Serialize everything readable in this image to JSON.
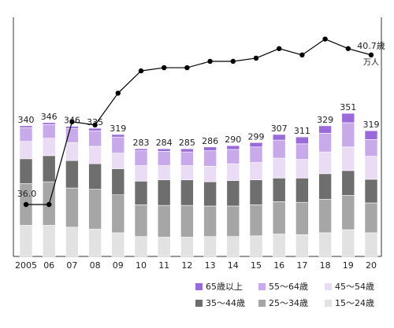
{
  "chart_data": {
    "type": "bar",
    "subtype": "stacked-bar-with-line",
    "categories": [
      "2005",
      "06",
      "07",
      "08",
      "09",
      "10",
      "11",
      "12",
      "13",
      "14",
      "15",
      "16",
      "17",
      "18",
      "19",
      "20"
    ],
    "totals": [
      340,
      346,
      346,
      335,
      319,
      283,
      284,
      285,
      286,
      290,
      299,
      307,
      311,
      329,
      351,
      319
    ],
    "total_unit": "万人",
    "series": [
      {
        "name": "15～24歳",
        "color": "#e2e2e2",
        "values": [
          50,
          50,
          47,
          44,
          38,
          32,
          31,
          31,
          32,
          32,
          33,
          36,
          35,
          38,
          43,
          38
        ]
      },
      {
        "name": "25～34歳",
        "color": "#a6a6a6",
        "values": [
          67,
          70,
          63,
          64,
          61,
          51,
          51,
          51,
          49,
          49,
          50,
          52,
          52,
          54,
          55,
          48
        ]
      },
      {
        "name": "35～44歳",
        "color": "#6e6e6e",
        "values": [
          40,
          42,
          44,
          41,
          42,
          38,
          41,
          41,
          39,
          41,
          40,
          38,
          39,
          41,
          40,
          38
        ]
      },
      {
        "name": "45～54歳",
        "color": "#ebdcf6",
        "values": [
          28,
          28,
          29,
          28,
          25,
          25,
          23,
          23,
          25,
          27,
          28,
          32,
          30,
          35,
          38,
          37
        ]
      },
      {
        "name": "55～64歳",
        "color": "#c8aaeb",
        "values": [
          22,
          22,
          23,
          25,
          26,
          24,
          23,
          22,
          25,
          23,
          25,
          29,
          25,
          30,
          39,
          27
        ]
      },
      {
        "name": "65歳以上",
        "color": "#9b6ad9",
        "values": [
          3,
          3,
          3,
          4,
          4,
          3,
          4,
          5,
          6,
          6,
          7,
          9,
          11,
          12,
          15,
          14
        ]
      }
    ],
    "line": {
      "values": [
        36.0,
        36.0,
        38.6,
        38.5,
        39.5,
        40.2,
        40.3,
        40.3,
        40.5,
        40.5,
        40.6,
        40.9,
        40.7,
        41.2,
        40.9,
        40.7
      ],
      "color": "#000000",
      "labels": {
        "0": "36.0",
        "15": "40.7歳"
      }
    },
    "ylim_bars": [
      0,
      400
    ],
    "ylim_line": [
      34,
      41.5
    ],
    "legend_position": "bottom-right",
    "grid": false
  }
}
